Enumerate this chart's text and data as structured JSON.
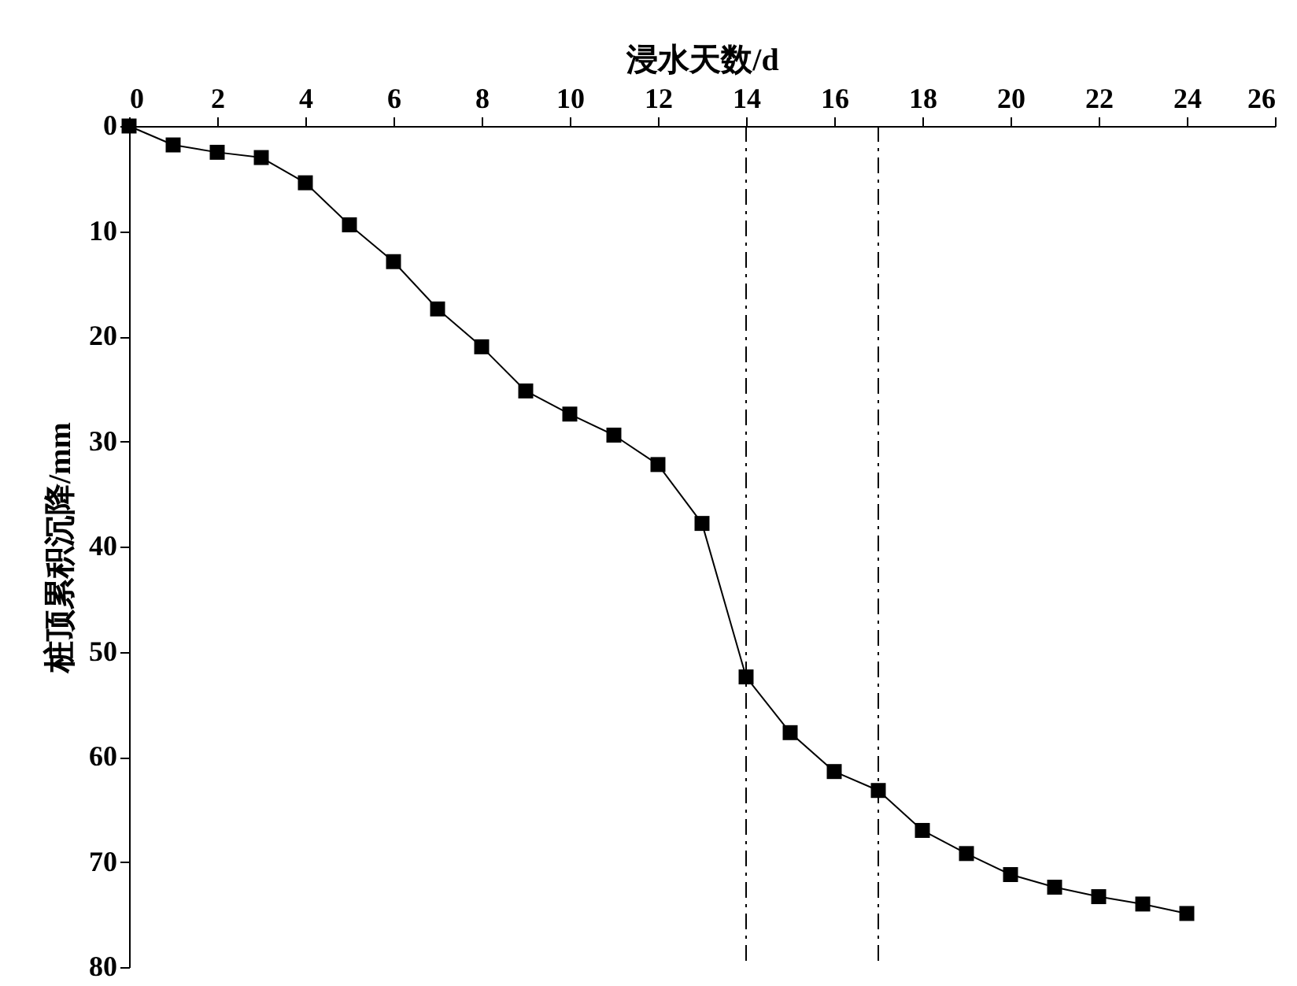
{
  "chart_data": {
    "type": "line",
    "xlabel": "浸水天数/d",
    "ylabel": "桩顶累积沉降/mm",
    "x": [
      0,
      1,
      2,
      3,
      4,
      5,
      6,
      7,
      8,
      9,
      10,
      11,
      12,
      13,
      14,
      15,
      16,
      17,
      18,
      19,
      20,
      21,
      22,
      23,
      24
    ],
    "series": [
      {
        "color": "#000000",
        "values": [
          0,
          1.8,
          2.5,
          3.0,
          5.4,
          9.4,
          12.9,
          17.4,
          21.0,
          25.2,
          27.4,
          29.4,
          32.2,
          37.8,
          52.4,
          57.7,
          61.4,
          63.2,
          67.0,
          69.2,
          71.2,
          72.4,
          73.3,
          74.0,
          74.9
        ]
      }
    ],
    "xlim": [
      0,
      26
    ],
    "xticks": [
      0,
      2,
      4,
      6,
      8,
      10,
      12,
      14,
      16,
      18,
      20,
      22,
      24,
      26
    ],
    "ylim": [
      80,
      0
    ],
    "yticks": [
      0,
      10,
      20,
      30,
      40,
      50,
      60,
      70,
      80
    ],
    "ref_lines": [
      {
        "axis": "x",
        "value": 14,
        "color": "#000000",
        "line_style": "dashed"
      },
      {
        "axis": "x",
        "value": 17,
        "color": "#000000",
        "line_style": "dashed"
      }
    ],
    "marker": "square",
    "line_style": "solid",
    "grid": false
  }
}
